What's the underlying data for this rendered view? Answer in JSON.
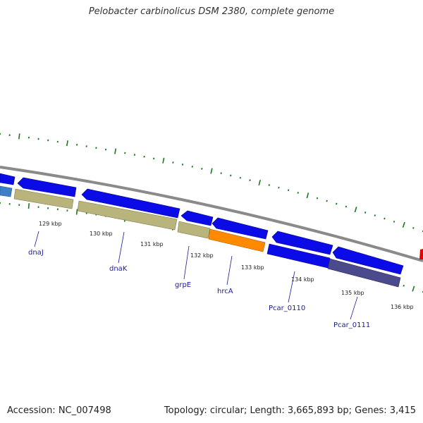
{
  "title": "Pelobacter carbinolicus DSM 2380, complete genome",
  "footer": {
    "accession": "Accession: NC_007498",
    "stats": "Topology: circular; Length: 3,665,893 bp; Genes: 3,415"
  },
  "colors": {
    "cds_blue": "#0b0be8",
    "rna_tan": "#b9b47c",
    "hrcA_orange": "#ff8a00",
    "pcar0111_purple": "#4a4a8c",
    "backbone": "#8a8a8a",
    "tick_green": "#1a7a1a",
    "label_blue": "#1a1a9c",
    "marker_red": "#e00000"
  },
  "kbp_labels": [
    "129 kbp",
    "130 kbp",
    "131 kbp",
    "132 kbp",
    "133 kbp",
    "134 kbp",
    "135 kbp",
    "136 kbp"
  ],
  "gene_labels": [
    "dnaJ",
    "dnaK",
    "grpE",
    "hrcA",
    "Pcar_0110",
    "Pcar_0111"
  ]
}
